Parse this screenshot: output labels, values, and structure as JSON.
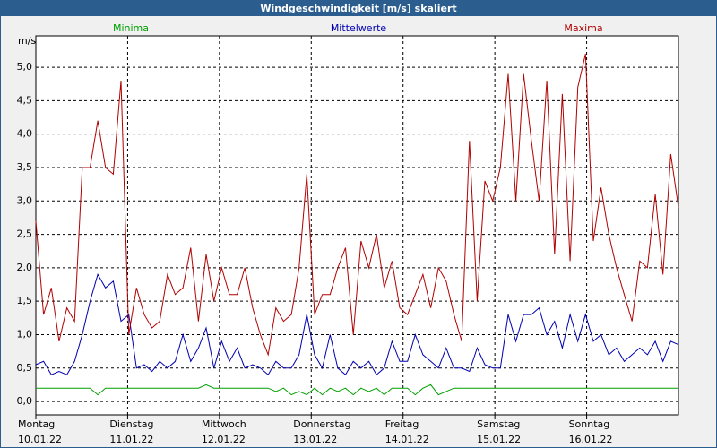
{
  "chart_data": {
    "type": "line",
    "title": "Windgeschwindigkeit [m/s] skaliert",
    "y_label": "m/s",
    "xlim": [
      0,
      7
    ],
    "xticks": [
      {
        "value": 0,
        "label": "Montag",
        "sublabel": "10.01.22"
      },
      {
        "value": 1,
        "label": "Dienstag",
        "sublabel": "11.01.22"
      },
      {
        "value": 2,
        "label": "Mittwoch",
        "sublabel": "12.01.22"
      },
      {
        "value": 3,
        "label": "Donnerstag",
        "sublabel": "13.01.22"
      },
      {
        "value": 4,
        "label": "Freitag",
        "sublabel": "14.01.22"
      },
      {
        "value": 5,
        "label": "Samstag",
        "sublabel": "15.01.22"
      },
      {
        "value": 6,
        "label": "Sonntag",
        "sublabel": "16.01.22"
      }
    ],
    "ylim": [
      -0.2,
      5.47
    ],
    "yticks": [
      {
        "value": 0,
        "label": "0,0"
      },
      {
        "value": 0.5,
        "label": "0,5"
      },
      {
        "value": 1,
        "label": "1,0"
      },
      {
        "value": 1.5,
        "label": "1,5"
      },
      {
        "value": 2,
        "label": "2,0"
      },
      {
        "value": 2.5,
        "label": "2,5"
      },
      {
        "value": 3,
        "label": "3,0"
      },
      {
        "value": 3.5,
        "label": "3,5"
      },
      {
        "value": 4,
        "label": "4,0"
      },
      {
        "value": 4.5,
        "label": "4,5"
      },
      {
        "value": 5,
        "label": "5,0"
      }
    ],
    "grid": true,
    "series": [
      {
        "name": "Minima",
        "color": "#00a000",
        "values": [
          0.2,
          0.2,
          0.2,
          0.2,
          0.2,
          0.2,
          0.2,
          0.2,
          0.1,
          0.2,
          0.2,
          0.2,
          0.2,
          0.2,
          0.2,
          0.2,
          0.2,
          0.2,
          0.2,
          0.2,
          0.2,
          0.2,
          0.25,
          0.2,
          0.2,
          0.2,
          0.2,
          0.2,
          0.2,
          0.2,
          0.2,
          0.15,
          0.2,
          0.1,
          0.15,
          0.1,
          0.2,
          0.1,
          0.2,
          0.15,
          0.2,
          0.1,
          0.2,
          0.15,
          0.2,
          0.1,
          0.2,
          0.2,
          0.2,
          0.1,
          0.2,
          0.25,
          0.1,
          0.15,
          0.2,
          0.2,
          0.2,
          0.2,
          0.2,
          0.2,
          0.2,
          0.2,
          0.2,
          0.2,
          0.2,
          0.2,
          0.2,
          0.2,
          0.2,
          0.2,
          0.2,
          0.2,
          0.2,
          0.2,
          0.2,
          0.2,
          0.2,
          0.2,
          0.2,
          0.2,
          0.2,
          0.2,
          0.2,
          0.2
        ]
      },
      {
        "name": "Mittelwerte",
        "color": "#0000b0",
        "values": [
          0.55,
          0.6,
          0.4,
          0.45,
          0.4,
          0.6,
          1.0,
          1.5,
          1.9,
          1.7,
          1.8,
          1.2,
          1.3,
          0.5,
          0.55,
          0.45,
          0.6,
          0.5,
          0.6,
          1.0,
          0.6,
          0.8,
          1.1,
          0.5,
          0.9,
          0.6,
          0.8,
          0.5,
          0.55,
          0.5,
          0.4,
          0.6,
          0.5,
          0.5,
          0.7,
          1.3,
          0.7,
          0.5,
          1.0,
          0.5,
          0.4,
          0.6,
          0.5,
          0.6,
          0.4,
          0.5,
          0.9,
          0.6,
          0.6,
          1.0,
          0.7,
          0.6,
          0.5,
          0.8,
          0.5,
          0.5,
          0.45,
          0.8,
          0.55,
          0.5,
          0.5,
          1.3,
          0.9,
          1.3,
          1.3,
          1.4,
          1.0,
          1.2,
          0.8,
          1.3,
          0.9,
          1.3,
          0.9,
          1.0,
          0.7,
          0.8,
          0.6,
          0.7,
          0.8,
          0.7,
          0.9,
          0.6,
          0.9,
          0.85
        ]
      },
      {
        "name": "Maxima",
        "color": "#b00000",
        "values": [
          2.7,
          1.3,
          1.7,
          0.9,
          1.4,
          1.2,
          3.5,
          3.5,
          4.2,
          3.5,
          3.4,
          4.8,
          1.0,
          1.7,
          1.3,
          1.1,
          1.2,
          1.9,
          1.6,
          1.7,
          2.3,
          1.2,
          2.2,
          1.5,
          2.0,
          1.6,
          1.6,
          2.0,
          1.4,
          1.0,
          0.7,
          1.4,
          1.2,
          1.3,
          2.0,
          3.4,
          1.3,
          1.6,
          1.6,
          2.0,
          2.3,
          1.0,
          2.4,
          2.0,
          2.5,
          1.7,
          2.1,
          1.4,
          1.3,
          1.6,
          1.9,
          1.4,
          2.0,
          1.8,
          1.3,
          0.9,
          3.9,
          1.5,
          3.3,
          3.0,
          3.5,
          4.9,
          3.0,
          4.9,
          3.9,
          3.0,
          4.8,
          2.2,
          4.6,
          2.1,
          4.7,
          5.2,
          2.4,
          3.2,
          2.5,
          2.0,
          1.6,
          1.2,
          2.1,
          2.0,
          3.1,
          1.9,
          3.7,
          2.9
        ]
      }
    ]
  }
}
